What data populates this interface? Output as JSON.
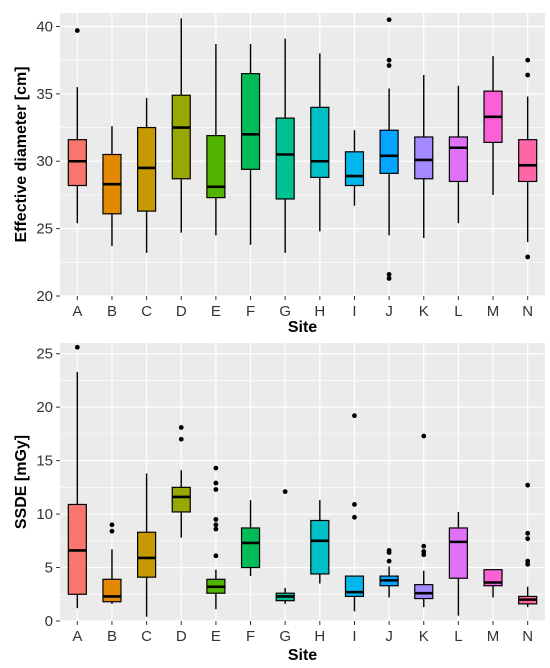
{
  "chart_data": [
    {
      "type": "box",
      "xlabel": "Site",
      "ylabel": "Effective diameter [cm]",
      "ylim": [
        20,
        41
      ],
      "yticks": [
        20,
        25,
        30,
        35,
        40
      ],
      "grid": true,
      "categories": [
        "A",
        "B",
        "C",
        "D",
        "E",
        "F",
        "G",
        "H",
        "I",
        "J",
        "K",
        "L",
        "M",
        "N"
      ],
      "colors": [
        "#F8766D",
        "#E38900",
        "#C49A00",
        "#99A800",
        "#53B400",
        "#00BC56",
        "#00C094",
        "#00BFC4",
        "#00B6EB",
        "#06A4FF",
        "#A58AFF",
        "#DF70F8",
        "#FB61D7",
        "#FF66A8"
      ],
      "boxes": [
        {
          "min": 25.4,
          "q1": 28.2,
          "median": 30.0,
          "q3": 31.6,
          "max": 35.5,
          "outliers": [
            39.7
          ]
        },
        {
          "min": 23.7,
          "q1": 26.1,
          "median": 28.3,
          "q3": 30.5,
          "max": 32.6,
          "outliers": []
        },
        {
          "min": 23.2,
          "q1": 26.3,
          "median": 29.5,
          "q3": 32.5,
          "max": 34.7,
          "outliers": []
        },
        {
          "min": 24.7,
          "q1": 28.7,
          "median": 32.5,
          "q3": 34.9,
          "max": 40.6,
          "outliers": []
        },
        {
          "min": 24.5,
          "q1": 27.3,
          "median": 28.1,
          "q3": 31.9,
          "max": 38.7,
          "outliers": []
        },
        {
          "min": 23.8,
          "q1": 29.4,
          "median": 32.0,
          "q3": 36.5,
          "max": 38.7,
          "outliers": []
        },
        {
          "min": 23.2,
          "q1": 27.2,
          "median": 30.5,
          "q3": 33.2,
          "max": 39.1,
          "outliers": []
        },
        {
          "min": 24.8,
          "q1": 28.8,
          "median": 30.0,
          "q3": 34.0,
          "max": 38.0,
          "outliers": []
        },
        {
          "min": 26.7,
          "q1": 28.2,
          "median": 28.9,
          "q3": 30.7,
          "max": 32.3,
          "outliers": []
        },
        {
          "min": 24.5,
          "q1": 29.1,
          "median": 30.4,
          "q3": 32.3,
          "max": 35.4,
          "outliers": [
            40.5,
            37.5,
            37.1,
            21.6,
            21.3
          ]
        },
        {
          "min": 24.3,
          "q1": 28.7,
          "median": 30.1,
          "q3": 31.8,
          "max": 36.4,
          "outliers": []
        },
        {
          "min": 25.4,
          "q1": 28.5,
          "median": 31.0,
          "q3": 31.8,
          "max": 35.6,
          "outliers": []
        },
        {
          "min": 27.5,
          "q1": 31.4,
          "median": 33.3,
          "q3": 35.2,
          "max": 37.8,
          "outliers": []
        },
        {
          "min": 24.0,
          "q1": 28.5,
          "median": 29.7,
          "q3": 31.6,
          "max": 34.8,
          "outliers": [
            37.5,
            36.4,
            22.9
          ]
        }
      ]
    },
    {
      "type": "box",
      "xlabel": "Site",
      "ylabel": "SSDE [mGy]",
      "ylim": [
        0,
        26
      ],
      "yticks": [
        0,
        5,
        10,
        15,
        20,
        25
      ],
      "grid": true,
      "categories": [
        "A",
        "B",
        "C",
        "D",
        "E",
        "F",
        "G",
        "H",
        "I",
        "J",
        "K",
        "L",
        "M",
        "N"
      ],
      "colors": [
        "#F8766D",
        "#E38900",
        "#C49A00",
        "#99A800",
        "#53B400",
        "#00BC56",
        "#00C094",
        "#00BFC4",
        "#00B6EB",
        "#06A4FF",
        "#A58AFF",
        "#DF70F8",
        "#FB61D7",
        "#FF66A8"
      ],
      "boxes": [
        {
          "min": 1.2,
          "q1": 2.5,
          "median": 6.6,
          "q3": 10.9,
          "max": 23.3,
          "outliers": [
            25.6
          ]
        },
        {
          "min": 1.6,
          "q1": 1.8,
          "median": 2.3,
          "q3": 3.9,
          "max": 6.7,
          "outliers": [
            9.0,
            8.4
          ]
        },
        {
          "min": 0.4,
          "q1": 4.1,
          "median": 5.9,
          "q3": 8.3,
          "max": 13.8,
          "outliers": []
        },
        {
          "min": 7.8,
          "q1": 10.2,
          "median": 11.6,
          "q3": 12.5,
          "max": 14.1,
          "outliers": [
            18.1,
            17.0
          ]
        },
        {
          "min": 1.1,
          "q1": 2.6,
          "median": 3.2,
          "q3": 3.9,
          "max": 4.8,
          "outliers": [
            14.3,
            12.9,
            12.3,
            9.5,
            9.0,
            8.6,
            6.1
          ]
        },
        {
          "min": 4.2,
          "q1": 5.0,
          "median": 7.3,
          "q3": 8.7,
          "max": 11.3,
          "outliers": []
        },
        {
          "min": 1.6,
          "q1": 1.9,
          "median": 2.3,
          "q3": 2.6,
          "max": 3.1,
          "outliers": [
            12.1
          ]
        },
        {
          "min": 3.5,
          "q1": 4.4,
          "median": 7.5,
          "q3": 9.4,
          "max": 11.3,
          "outliers": []
        },
        {
          "min": 0.9,
          "q1": 2.3,
          "median": 2.7,
          "q3": 4.2,
          "max": 4.2,
          "outliers": [
            19.2,
            10.9,
            9.7
          ]
        },
        {
          "min": 2.2,
          "q1": 3.3,
          "median": 3.8,
          "q3": 4.2,
          "max": 5.1,
          "outliers": [
            6.6,
            6.4,
            5.6
          ]
        },
        {
          "min": 1.3,
          "q1": 2.1,
          "median": 2.6,
          "q3": 3.4,
          "max": 4.7,
          "outliers": [
            17.3,
            7.0,
            6.5,
            6.2
          ]
        },
        {
          "min": 0.5,
          "q1": 4.0,
          "median": 7.4,
          "q3": 8.7,
          "max": 10.2,
          "outliers": []
        },
        {
          "min": 2.2,
          "q1": 3.3,
          "median": 3.6,
          "q3": 4.8,
          "max": 4.8,
          "outliers": []
        },
        {
          "min": 1.3,
          "q1": 1.6,
          "median": 2.0,
          "q3": 2.3,
          "max": 3.2,
          "outliers": [
            12.7,
            8.2,
            7.7,
            5.6,
            5.3
          ]
        }
      ]
    }
  ]
}
